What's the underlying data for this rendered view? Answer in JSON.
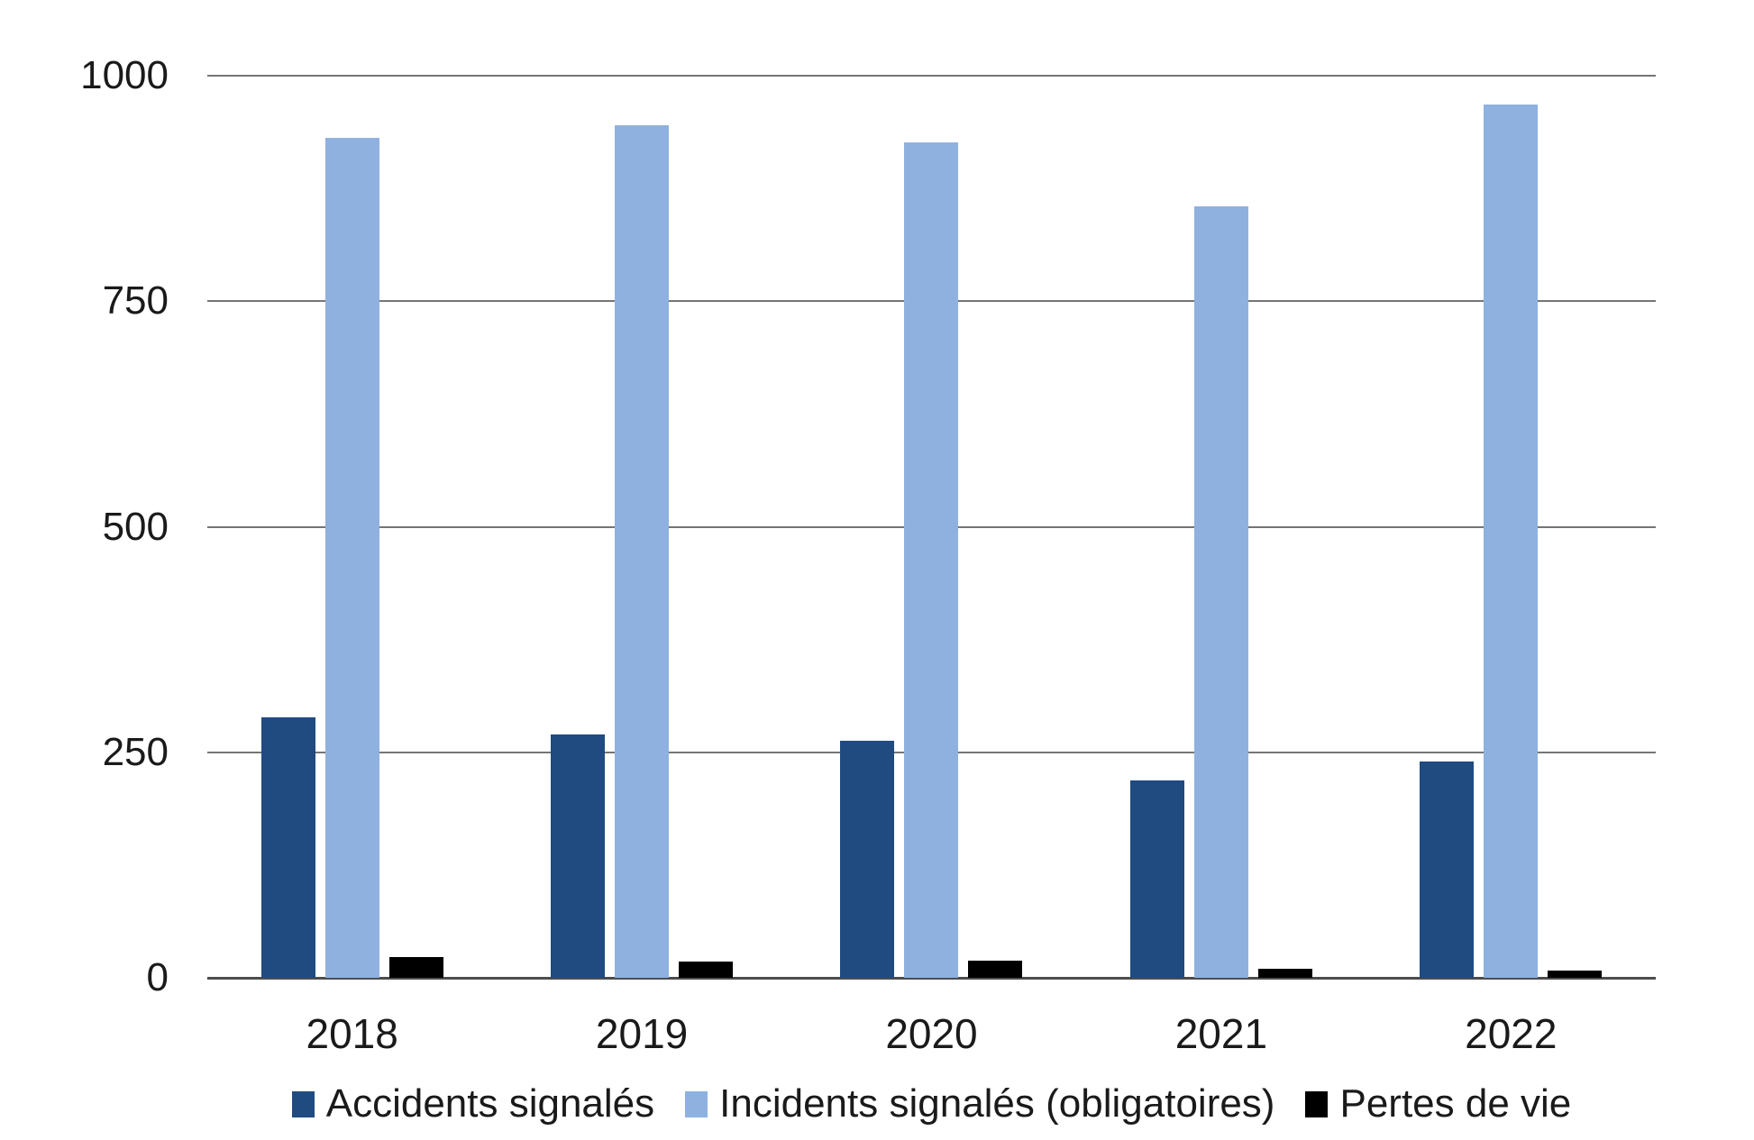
{
  "chart_data": {
    "type": "bar",
    "title": "",
    "categories": [
      "2018",
      "2019",
      "2020",
      "2021",
      "2022"
    ],
    "series": [
      {
        "name": "Accidents signalés",
        "color": "#1F4B80",
        "values": [
          289,
          270,
          263,
          219,
          240
        ]
      },
      {
        "name": "Incidents signalés (obligatoires)",
        "color": "#8EB1E0",
        "values": [
          931,
          945,
          926,
          855,
          968
        ]
      },
      {
        "name": "Pertes de vie",
        "color": "#000000",
        "values": [
          23,
          18,
          19,
          10,
          8
        ]
      }
    ],
    "ylim": [
      0,
      1000
    ],
    "yticks": [
      0,
      250,
      500,
      750,
      1000
    ],
    "grid": true,
    "legend_position": "bottom"
  },
  "colors": {
    "background": "#ffffff",
    "gridline": "#757575",
    "axis_line": "#4d4d4d",
    "text": "#1a1a1a"
  }
}
